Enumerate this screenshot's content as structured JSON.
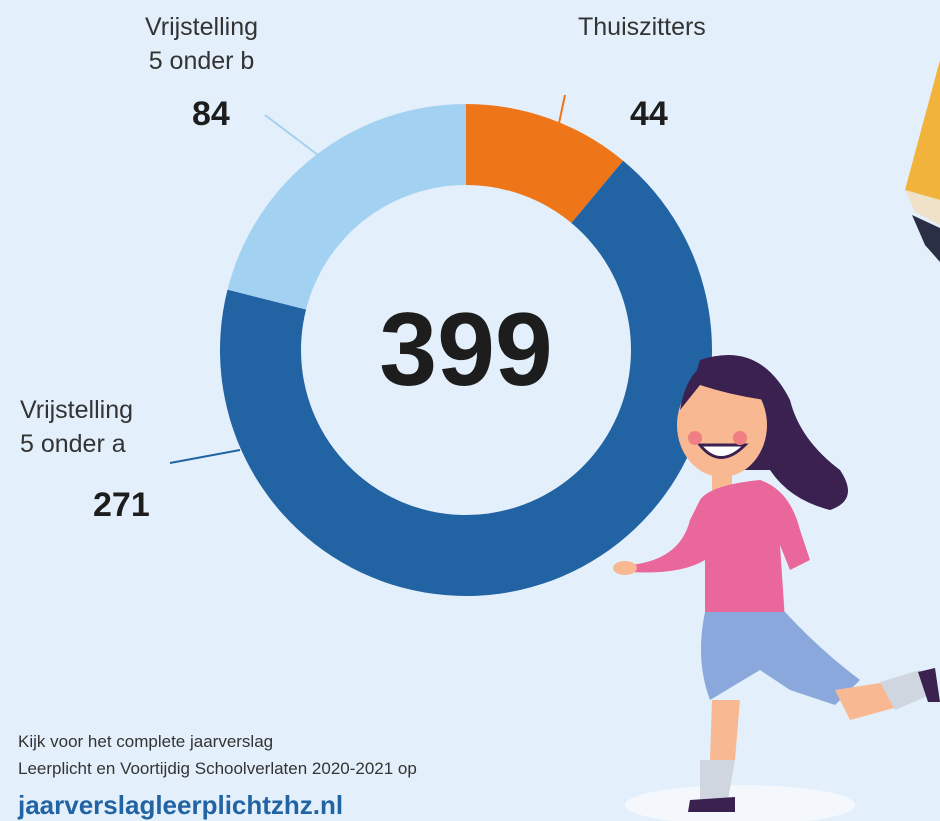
{
  "chart_data": {
    "type": "donut",
    "categories": [
      "Thuiszitters",
      "Vrijstelling\n5 onder a",
      "Vrijstelling\n5 onder b"
    ],
    "values": [
      44,
      271,
      84
    ],
    "colors": [
      "#ee7518",
      "#2263a3",
      "#a3d1f1"
    ],
    "total": 399,
    "footer": [
      "Kijk voor het complete jaarverslag",
      "Leerplicht en Voortijdig Schoolverlaten 2020-2021 op"
    ],
    "link": "jaarverslagleerplichtzhz.nl"
  }
}
